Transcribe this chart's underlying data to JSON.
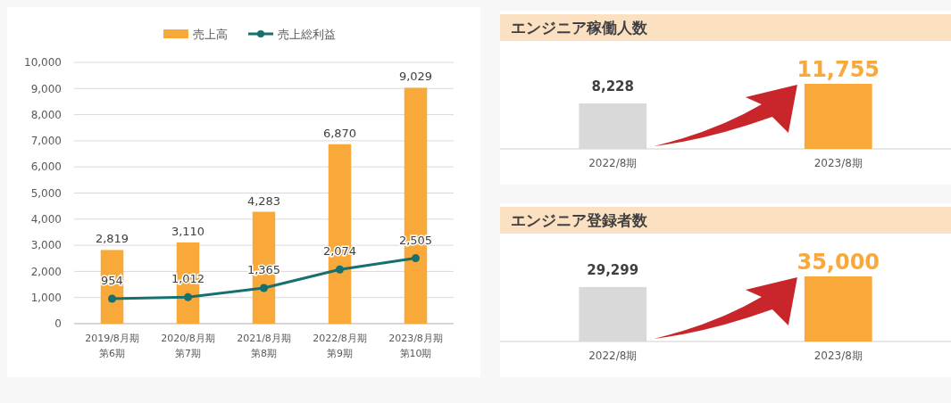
{
  "chart_data": [
    {
      "type": "bar",
      "categories": [
        "2019/8月期第6期",
        "2020/8月期第7期",
        "2021/8月期第8期",
        "2022/8月期第9期",
        "2023/8月期第10期"
      ],
      "series": [
        {
          "name": "売上高",
          "color": "#f9a83a",
          "values": [
            2819,
            3110,
            4283,
            6870,
            9029
          ],
          "value_labels": [
            "2,819",
            "3,110",
            "4,283",
            "6,870",
            "9,029"
          ]
        },
        {
          "name": "売上総利益",
          "type": "line",
          "color": "#16706e",
          "values": [
            954,
            1012,
            1365,
            2074,
            2505
          ],
          "value_labels": [
            "954",
            "1,012",
            "1,365",
            "2,074",
            "2,505"
          ]
        }
      ],
      "ylim": [
        0,
        10000
      ],
      "yticks": [
        {
          "value": 0,
          "label": "0"
        },
        {
          "value": 1000,
          "label": "1,000"
        },
        {
          "value": 2000,
          "label": "2,000"
        },
        {
          "value": 3000,
          "label": "3,000"
        },
        {
          "value": 4000,
          "label": "4,000"
        },
        {
          "value": 5000,
          "label": "5,000"
        },
        {
          "value": 6000,
          "label": "6,000"
        },
        {
          "value": 7000,
          "label": "7,000"
        },
        {
          "value": 8000,
          "label": "8,000"
        },
        {
          "value": 9000,
          "label": "9,000"
        },
        {
          "value": 10000,
          "label": "10,000"
        }
      ],
      "grid": "y",
      "legend": "top",
      "marker": "circle"
    },
    {
      "type": "bar",
      "title": "エンジニア稼働人数",
      "categories": [
        "2022/8期",
        "2023/8期"
      ],
      "values": [
        8228,
        11755
      ],
      "value_labels": [
        "8,228",
        "11,755"
      ],
      "colors": [
        "#d9d9d9",
        "#f9a83a"
      ]
    },
    {
      "type": "bar",
      "title": "エンジニア登録者数",
      "categories": [
        "2022/8期",
        "2023/8期"
      ],
      "values": [
        29299,
        35000
      ],
      "value_labels": [
        "29,299",
        "35,000"
      ],
      "colors": [
        "#d9d9d9",
        "#f9a83a"
      ]
    }
  ]
}
